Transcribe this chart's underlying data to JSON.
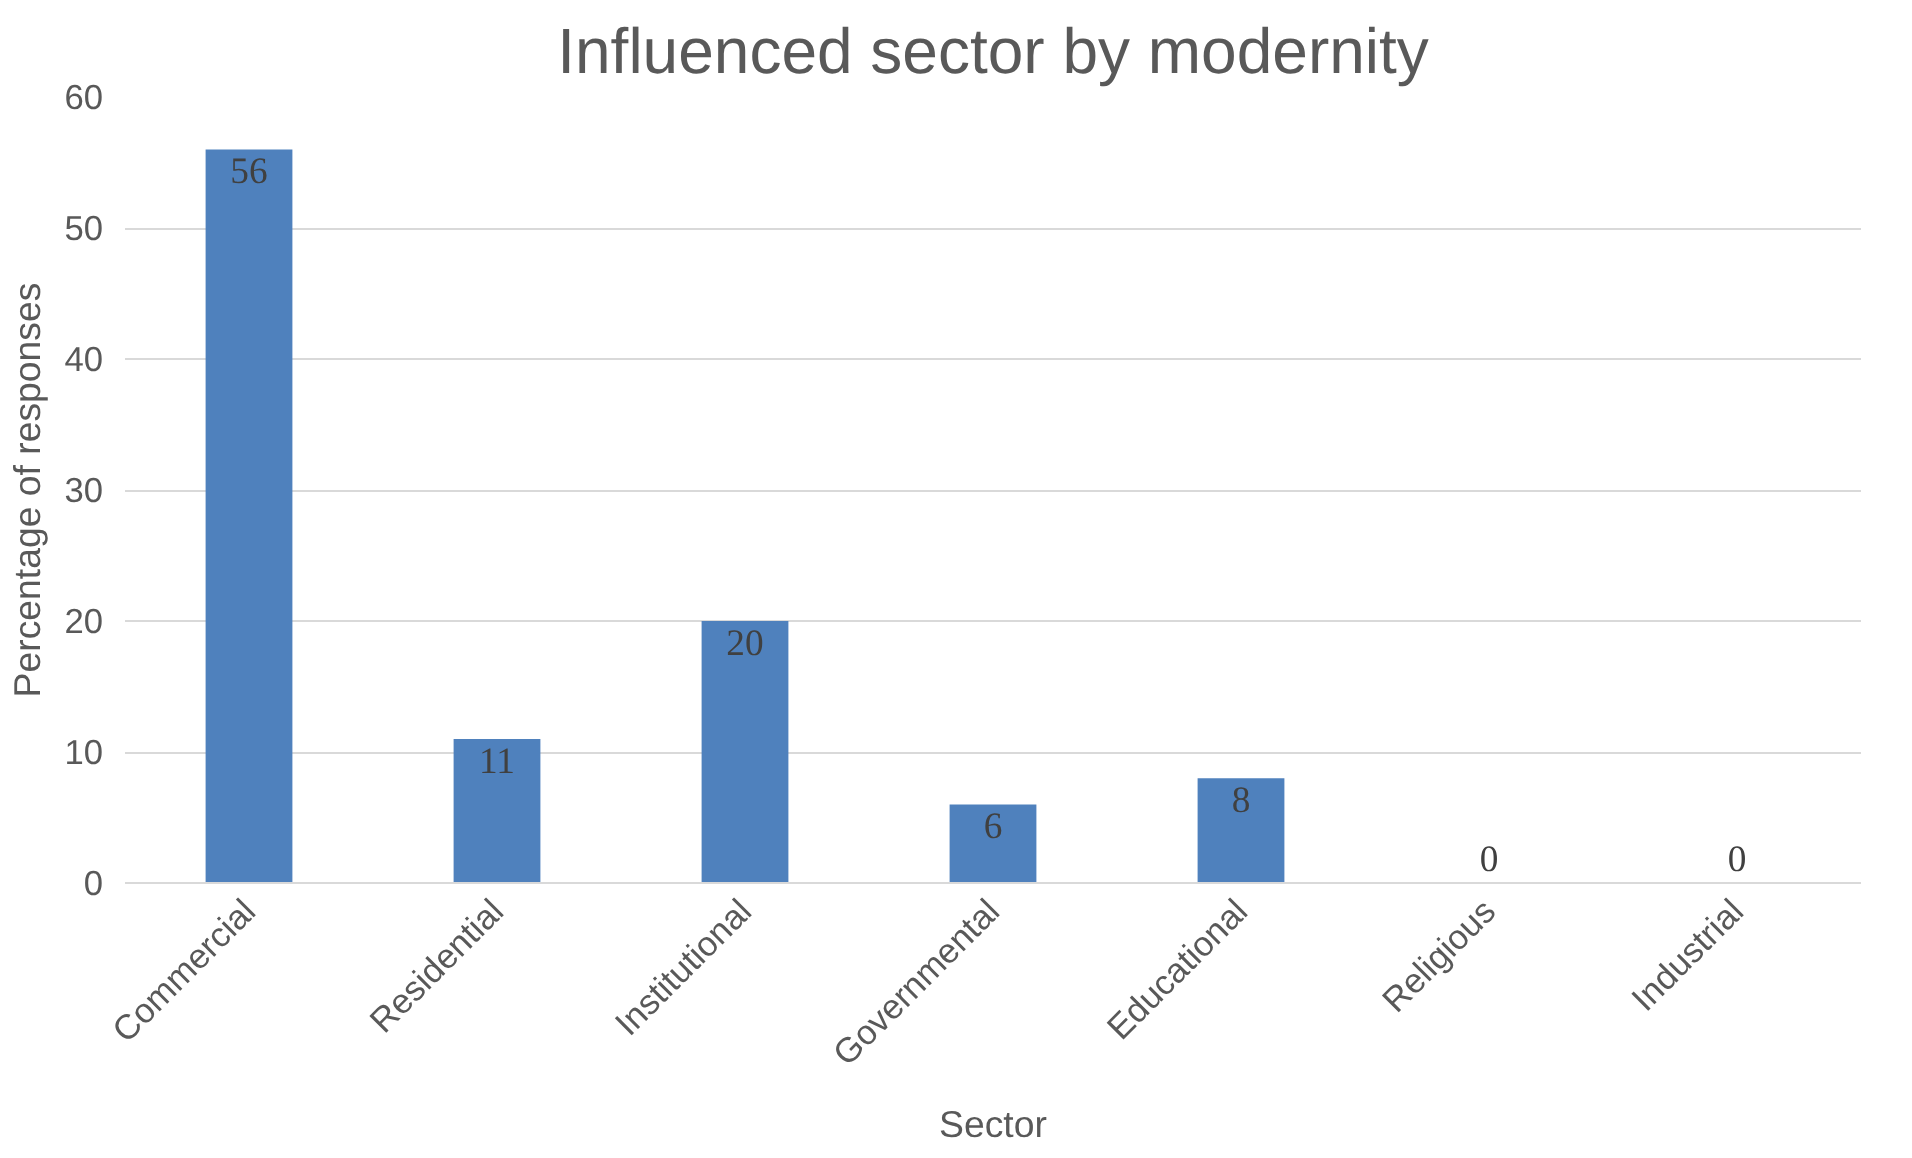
{
  "chart_data": {
    "type": "bar",
    "title": "Influenced sector by modernity",
    "xlabel": "Sector",
    "ylabel": "Percentage of responses",
    "categories": [
      "Commercial",
      "Residential",
      "Institutional",
      "Governmental",
      "Educational",
      "Religious",
      "Industrial"
    ],
    "values": [
      56,
      11,
      20,
      6,
      8,
      0,
      0
    ],
    "color": "#4f81bd",
    "ylim": [
      0,
      60
    ],
    "yticks": [
      0,
      10,
      20,
      30,
      40,
      50,
      60
    ],
    "grid": "y",
    "data_labels": true
  }
}
